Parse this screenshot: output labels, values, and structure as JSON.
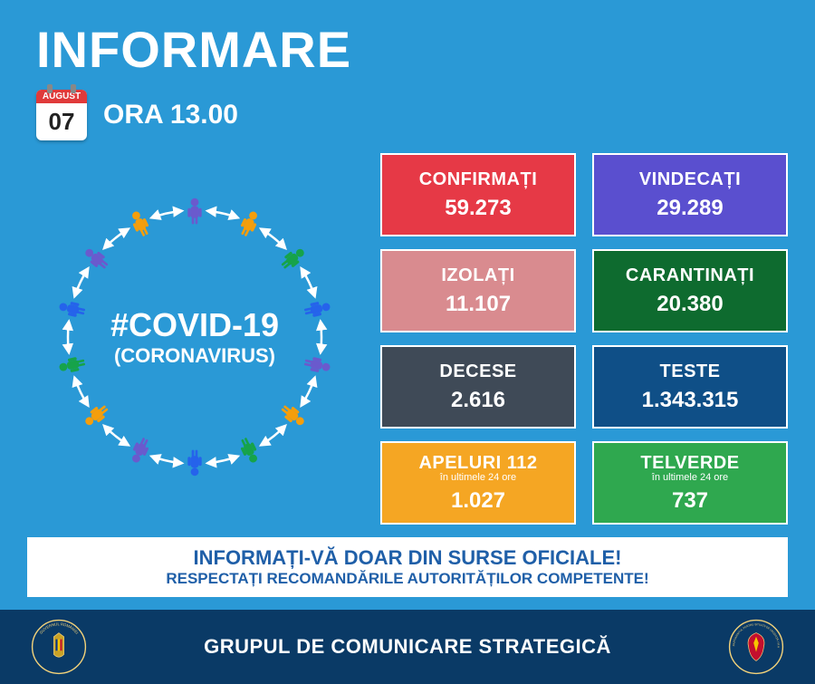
{
  "colors": {
    "page_bg": "#2a99d6",
    "footer_bg": "#0a3a66",
    "banner_text": "#1f5fa8",
    "white": "#ffffff",
    "calendar_header": "#e03a3a"
  },
  "header": {
    "title": "INFORMARE",
    "calendar": {
      "month": "AUGUST",
      "day": "07"
    },
    "time_label": "ORA 13.00"
  },
  "left": {
    "hashtag": "#COVID-19",
    "subtitle": "(CORONAVIRUS)",
    "ring": {
      "radius": 140,
      "icon_count": 14,
      "icon_colors": [
        "#6a5acd",
        "#f59e0b",
        "#16a34a",
        "#2563eb",
        "#6a5acd",
        "#f59e0b",
        "#16a34a",
        "#2563eb",
        "#6a5acd",
        "#f59e0b",
        "#16a34a",
        "#2563eb",
        "#6a5acd",
        "#f59e0b"
      ],
      "arrow_color": "#ffffff"
    }
  },
  "cards": [
    {
      "label": "CONFIRMAȚI",
      "value": "59.273",
      "bg": "#e63946"
    },
    {
      "label": "VINDECAȚI",
      "value": "29.289",
      "bg": "#5a4fcf"
    },
    {
      "label": "IZOLAȚI",
      "value": "11.107",
      "bg": "#d98b8f"
    },
    {
      "label": "CARANTINAȚI",
      "value": "20.380",
      "bg": "#0e6b2f"
    },
    {
      "label": "DECESE",
      "value": "2.616",
      "bg": "#3f4a57"
    },
    {
      "label": "TESTE",
      "value": "1.343.315",
      "bg": "#0f4f87"
    },
    {
      "label": "APELURI 112",
      "sub": "în ultimele 24 ore",
      "value": "1.027",
      "bg": "#f5a623"
    },
    {
      "label": "TELVERDE",
      "sub": "în ultimele 24 ore",
      "value": "737",
      "bg": "#2fa84f"
    }
  ],
  "banner": {
    "line1": "INFORMAȚI-VĂ DOAR DIN SURSE OFICIALE!",
    "line2": "RESPECTAȚI RECOMANDĂRILE AUTORITĂȚILOR COMPETENTE!"
  },
  "footer": {
    "title": "GRUPUL DE COMUNICARE STRATEGICĂ",
    "left_crest": "GUVERNUL ROMÂNIEI",
    "right_crest": "DEPARTAMENTUL PENTRU SITUAȚII DE URGENȚĂ • M.A.I."
  }
}
